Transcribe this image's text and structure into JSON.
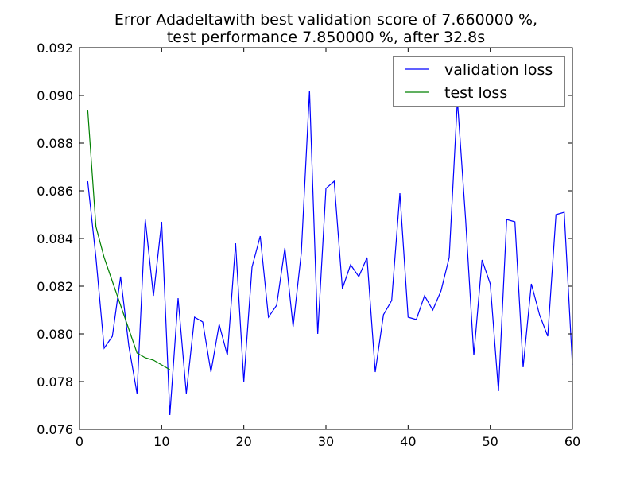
{
  "chart_data": {
    "type": "line",
    "title": "Error Adadeltawith best validation score of 7.660000 %,",
    "subtitle": "test performance 7.850000 %, after 32.8s",
    "xlabel": "",
    "ylabel": "",
    "xlim": [
      0,
      60
    ],
    "ylim": [
      0.076,
      0.092
    ],
    "x_ticks": [
      "0",
      "10",
      "20",
      "30",
      "40",
      "50",
      "60"
    ],
    "y_ticks": [
      "0.076",
      "0.078",
      "0.080",
      "0.082",
      "0.084",
      "0.086",
      "0.088",
      "0.090",
      "0.092"
    ],
    "grid": false,
    "legend_position": "top-right",
    "series": [
      {
        "name": "validation loss",
        "color": "#0000ff",
        "x": [
          1,
          2,
          3,
          4,
          5,
          6,
          7,
          8,
          9,
          10,
          11,
          12,
          13,
          14,
          15,
          16,
          17,
          18,
          19,
          20,
          21,
          22,
          23,
          24,
          25,
          26,
          27,
          28,
          29,
          30,
          31,
          32,
          33,
          34,
          35,
          36,
          37,
          38,
          39,
          40,
          41,
          42,
          43,
          44,
          45,
          46,
          47,
          48,
          49,
          50,
          51,
          52,
          53,
          54,
          55,
          56,
          57,
          58,
          59,
          60
        ],
        "values": [
          0.0864,
          0.0832,
          0.0794,
          0.0799,
          0.0824,
          0.0795,
          0.0775,
          0.0848,
          0.0816,
          0.0847,
          0.0766,
          0.0815,
          0.0775,
          0.0807,
          0.0805,
          0.0784,
          0.0804,
          0.0791,
          0.0838,
          0.078,
          0.0828,
          0.0841,
          0.0807,
          0.0812,
          0.0836,
          0.0803,
          0.0834,
          0.0902,
          0.08,
          0.0861,
          0.0864,
          0.0819,
          0.0829,
          0.0824,
          0.0832,
          0.0784,
          0.0808,
          0.0814,
          0.0859,
          0.0807,
          0.0806,
          0.0816,
          0.081,
          0.0818,
          0.0832,
          0.0898,
          0.0848,
          0.0791,
          0.0831,
          0.0821,
          0.0776,
          0.0848,
          0.0847,
          0.0786,
          0.0821,
          0.0808,
          0.0799,
          0.085,
          0.0851,
          0.0787
        ]
      },
      {
        "name": "test loss",
        "color": "#008000",
        "x": [
          1,
          2,
          3,
          4,
          5,
          6,
          7,
          8,
          9,
          10,
          11
        ],
        "values": [
          0.0894,
          0.0845,
          0.0832,
          0.0822,
          0.0812,
          0.0802,
          0.0792,
          0.079,
          0.0789,
          0.0787,
          0.0785
        ]
      }
    ]
  }
}
